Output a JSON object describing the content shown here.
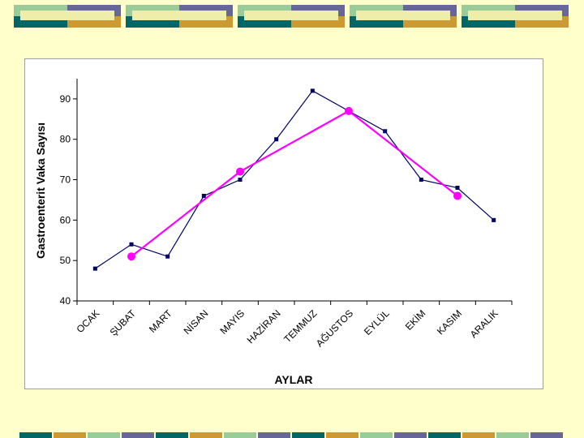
{
  "colors": {
    "background": "#ffffcc",
    "series_observed": "#000066",
    "series_seasonal": "#ff00ff",
    "deco_teal": "#006666",
    "deco_gold": "#cc9933",
    "deco_sage": "#99cc99",
    "deco_purple": "#666699",
    "deco_cream": "#eeeeaa"
  },
  "chart_data": {
    "type": "line",
    "xlabel": "AYLAR",
    "ylabel": "Gastroenterit Vaka Sayısı",
    "categories": [
      "OCAK",
      "ŞUBAT",
      "MART",
      "NİSAN",
      "MAYIS",
      "HAZİRAN",
      "TEMMUZ",
      "AĞUSTOS",
      "EYLÜL",
      "EKİM",
      "KASIM",
      "ARALIK"
    ],
    "ylim": [
      40,
      95
    ],
    "yticks": [
      40,
      50,
      60,
      70,
      80,
      90
    ],
    "grid": false,
    "series": [
      {
        "marker": "square",
        "color": "#000066",
        "values": [
          48,
          54,
          51,
          66,
          70,
          80,
          92,
          87,
          82,
          70,
          68,
          60
        ]
      },
      {
        "marker": "circle",
        "color": "#ff00ff",
        "points": [
          {
            "x": "ŞUBAT",
            "y": 51
          },
          {
            "x": "MAYIS",
            "y": 72
          },
          {
            "x": "AĞUSTOS",
            "y": 87
          },
          {
            "x": "KASIM",
            "y": 66
          }
        ]
      }
    ]
  }
}
